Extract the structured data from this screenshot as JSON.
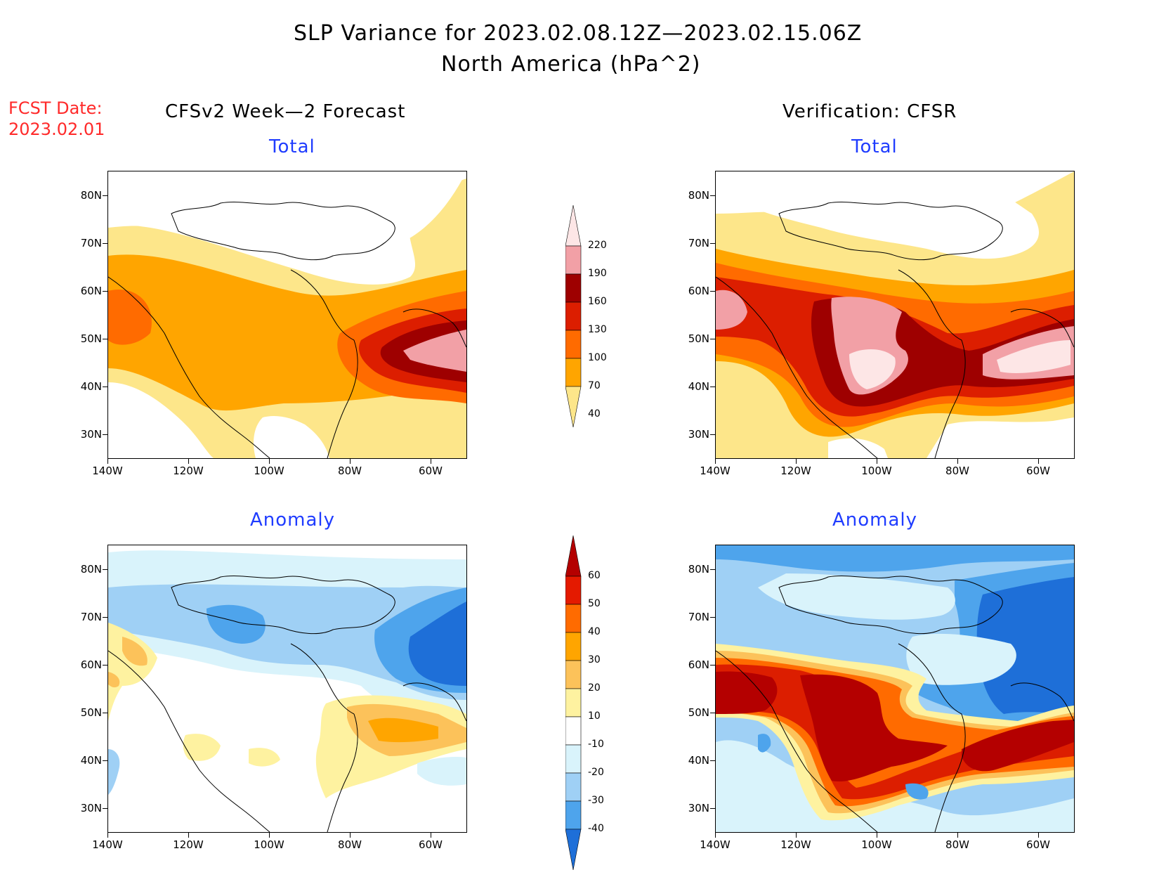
{
  "header": {
    "title_line1": "SLP Variance for 2023.02.08.12Z—2023.02.15.06Z",
    "title_line2": "North America (hPa^2)"
  },
  "fcst": {
    "line1": "FCST Date:",
    "line2": "2023.02.01"
  },
  "columns": {
    "left": "CFSv2 Week—2 Forecast",
    "right": "Verification: CFSR"
  },
  "panels": {
    "top_left": "Total",
    "top_right": "Total",
    "bottom_left": "Anomaly",
    "bottom_right": "Anomaly"
  },
  "axes": {
    "lat_labels": [
      "80N",
      "70N",
      "60N",
      "50N",
      "40N",
      "30N"
    ],
    "lon_labels": [
      "140W",
      "120W",
      "100W",
      "80W",
      "60W"
    ]
  },
  "colorbars": {
    "total": {
      "labels": [
        "220",
        "190",
        "160",
        "130",
        "100",
        "70",
        "40"
      ],
      "colors": [
        "#fde6e6",
        "#f2a0a6",
        "#9e0000",
        "#dc1e00",
        "#ff6b00",
        "#ffa500",
        "#fde68a"
      ]
    },
    "anomaly": {
      "labels": [
        "60",
        "50",
        "40",
        "30",
        "20",
        "10",
        "-10",
        "-20",
        "-30",
        "-40"
      ],
      "colors": [
        "#b40000",
        "#e41a00",
        "#ff6b00",
        "#ffa500",
        "#fcc25a",
        "#fef2a0",
        "#ffffff",
        "#d9f3fb",
        "#9fd0f5",
        "#4ea4ec",
        "#1e6fd8"
      ]
    }
  }
}
